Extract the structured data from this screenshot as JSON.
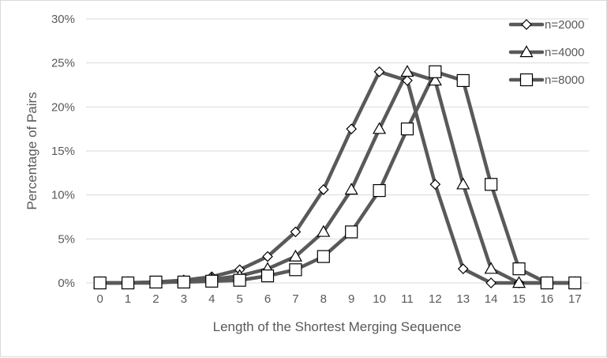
{
  "chart_data": {
    "type": "line",
    "title": "",
    "xlabel": "Length of the Shortest Merging Sequence",
    "ylabel": "Percentage of Pairs",
    "categories": [
      "0",
      "1",
      "2",
      "3",
      "4",
      "5",
      "6",
      "7",
      "8",
      "9",
      "10",
      "11",
      "12",
      "13",
      "14",
      "15",
      "16",
      "17"
    ],
    "y_ticks": [
      "0%",
      "5%",
      "10%",
      "15%",
      "20%",
      "25%",
      "30%"
    ],
    "ylim": [
      0,
      30
    ],
    "grid": "horizontal",
    "legend_position": "top-right",
    "series": [
      {
        "name": "n=2000",
        "marker": "diamond",
        "values": [
          0,
          0,
          0.1,
          0.3,
          0.7,
          1.5,
          3.0,
          5.8,
          10.6,
          17.5,
          24.0,
          23.0,
          11.2,
          1.6,
          0,
          0,
          0,
          0
        ]
      },
      {
        "name": "n=4000",
        "marker": "triangle",
        "values": [
          0,
          0,
          0,
          0.2,
          0.4,
          0.8,
          1.6,
          3.0,
          5.8,
          10.6,
          17.5,
          24.0,
          23.0,
          11.2,
          1.6,
          0,
          0,
          0
        ]
      },
      {
        "name": "n=8000",
        "marker": "square",
        "values": [
          0,
          0,
          0.1,
          0.1,
          0.2,
          0.3,
          0.8,
          1.5,
          3.0,
          5.8,
          10.5,
          17.5,
          24.0,
          23.0,
          11.2,
          1.6,
          0,
          0
        ]
      }
    ],
    "line_color": "#595959",
    "marker_fill": "#ffffff",
    "marker_stroke": "#000000",
    "grid_color": "#d9d9d9",
    "text_color": "#595959"
  }
}
